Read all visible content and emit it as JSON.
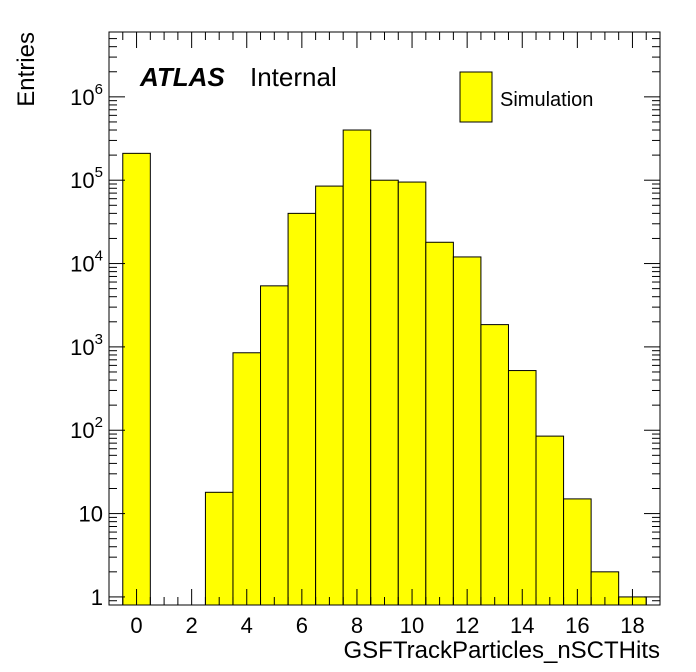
{
  "chart_data": {
    "type": "bar",
    "style": "histogram",
    "ylog": true,
    "xlabel": "GSFTrackParticles_nSCTHits",
    "ylabel": "Entries",
    "xlim": [
      -1,
      19
    ],
    "ylim": [
      0.8,
      6000000
    ],
    "label_main": "ATLAS",
    "label_sub": "Internal",
    "legend_placement": "top-right",
    "x_ticks": [
      0,
      2,
      4,
      6,
      8,
      10,
      12,
      14,
      16,
      18
    ],
    "y_ticks": [
      {
        "value": 1,
        "label": "1",
        "exp": ""
      },
      {
        "value": 10,
        "label": "10",
        "exp": ""
      },
      {
        "value": 100,
        "label": "10",
        "exp": "2"
      },
      {
        "value": 1000,
        "label": "10",
        "exp": "3"
      },
      {
        "value": 10000,
        "label": "10",
        "exp": "4"
      },
      {
        "value": 100000,
        "label": "10",
        "exp": "5"
      },
      {
        "value": 1000000,
        "label": "10",
        "exp": "6"
      }
    ],
    "series": [
      {
        "name": "Simulation",
        "color": "#ffff00",
        "edgecolor": "#000000",
        "x": [
          0,
          1,
          2,
          3,
          4,
          5,
          6,
          7,
          8,
          9,
          10,
          11,
          12,
          13,
          14,
          15,
          16,
          17,
          18
        ],
        "values": [
          210000,
          0,
          0,
          18,
          850,
          5400,
          40000,
          85000,
          400000,
          100000,
          95000,
          18000,
          12000,
          1850,
          520,
          85,
          15,
          2,
          1
        ]
      }
    ]
  }
}
